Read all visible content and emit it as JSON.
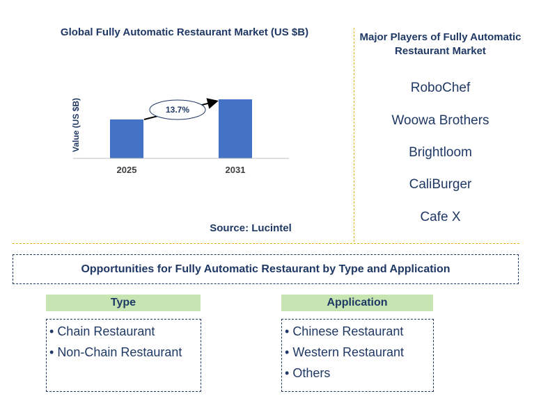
{
  "chart_title": "Global Fully Automatic Restaurant Market (US $B)",
  "source": "Source: Lucintel",
  "chart_data": {
    "type": "bar",
    "categories": [
      "2025",
      "2031"
    ],
    "values": [
      0.66,
      1.0
    ],
    "ylabel": "Value (US $B)",
    "xlabel": "",
    "annotation": "13.7%",
    "color": "#4472c4"
  },
  "players": {
    "title": "Major Players of Fully Automatic Restaurant Market",
    "items": [
      "RoboChef",
      "Woowa Brothers",
      "Brightloom",
      "CaliBurger",
      "Cafe X"
    ]
  },
  "opportunities": {
    "title": "Opportunities for Fully Automatic Restaurant by Type and Application",
    "type": {
      "header": "Type",
      "items": [
        "Chain Restaurant",
        "Non-Chain Restaurant"
      ]
    },
    "application": {
      "header": "Application",
      "items": [
        "Chinese Restaurant",
        "Western Restaurant",
        "Others"
      ]
    }
  },
  "colors": {
    "text": "#1f3864",
    "bar": "#4472c4",
    "header_fill": "#c6e5b3",
    "divider": "#e8b400"
  }
}
